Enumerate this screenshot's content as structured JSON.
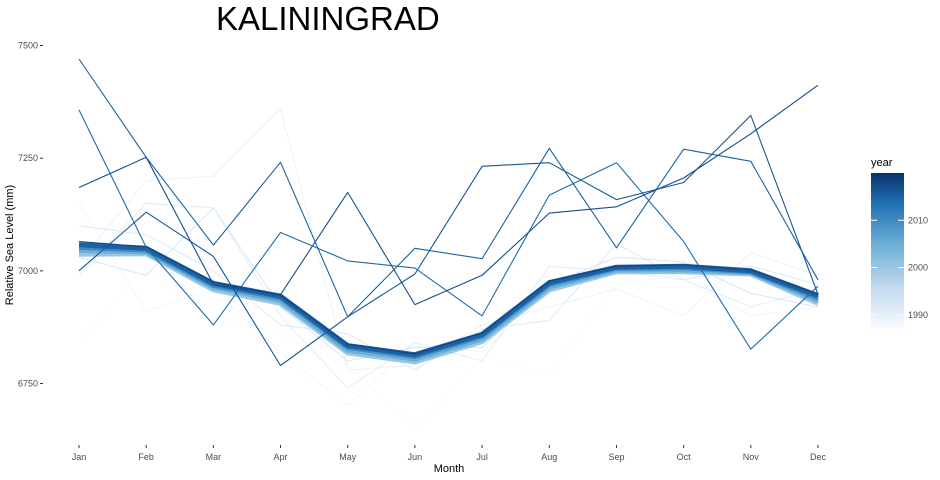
{
  "chart_data": {
    "type": "line",
    "title": "KALININGRAD",
    "xlabel": "Month",
    "ylabel": "Relative Sea Level (mm)",
    "categories": [
      "Jan",
      "Feb",
      "Mar",
      "Apr",
      "May",
      "Jun",
      "Jul",
      "Aug",
      "Sep",
      "Oct",
      "Nov",
      "Dec"
    ],
    "y_ticks": [
      6750,
      7000,
      7250,
      7500
    ],
    "ylim": [
      6625,
      7530
    ],
    "grid": false,
    "legend": {
      "title": "year",
      "placement": "right",
      "type": "colorbar",
      "ticks": [
        1990,
        2000,
        2010
      ],
      "range": [
        1987,
        2020
      ],
      "colors": [
        "#f7fbff",
        "#c6dbef",
        "#6baed6",
        "#2171b5",
        "#08306b"
      ]
    },
    "series": [
      {
        "year": 1987,
        "values": [
          6840,
          7010,
          6890,
          6860,
          6790,
          6650,
          6810,
          6770,
          6970,
          6990,
          6980,
          6940
        ]
      },
      {
        "year": 1988,
        "values": [
          7150,
          6910,
          6960,
          6820,
          6700,
          6840,
          6820,
          6950,
          7000,
          6980,
          6900,
          6920
        ]
      },
      {
        "year": 1989,
        "values": [
          7020,
          7200,
          7210,
          7360,
          6780,
          6790,
          6880,
          6920,
          6960,
          6900,
          7040,
          6990
        ]
      },
      {
        "year": 1990,
        "values": [
          6990,
          7150,
          7140,
          6900,
          6740,
          6840,
          6800,
          7010,
          7000,
          6980,
          6920,
          6960
        ]
      },
      {
        "year": 1991,
        "values": [
          7100,
          7080,
          7000,
          6880,
          6860,
          6780,
          6870,
          6890,
          7060,
          6980,
          7010,
          6970
        ]
      },
      {
        "year": 1992,
        "values": [
          7030,
          6990,
          7140,
          6920,
          6800,
          6830,
          6830,
          6970,
          7030,
          7020,
          6950,
          6920
        ]
      },
      {
        "year": 2000,
        "values": [
          7037,
          7038,
          6958,
          6928,
          6818,
          6798,
          6843,
          6958,
          6998,
          6998,
          6993,
          6928
        ]
      },
      {
        "year": 2005,
        "values": [
          7045,
          7042,
          6964,
          6934,
          6824,
          6804,
          6849,
          6964,
          7002,
          7002,
          6996,
          6934
        ]
      },
      {
        "year": 2010,
        "values": [
          7052,
          7046,
          6968,
          6940,
          6830,
          6810,
          6855,
          6970,
          7006,
          7007,
          6998,
          6940
        ]
      },
      {
        "year": 2015,
        "values": [
          7058,
          7050,
          6972,
          6944,
          6834,
          6814,
          6859,
          6974,
          7008,
          7010,
          7000,
          6945
        ]
      },
      {
        "year": 2014,
        "values": [
          7357,
          7052,
          6880,
          7085,
          7022,
          7006,
          6900,
          7168,
          7240,
          7065,
          6826,
          6966
        ]
      },
      {
        "year": 2015,
        "values": [
          7470,
          7252,
          7057,
          7241,
          6898,
          7050,
          7027,
          7272,
          7051,
          7270,
          7243,
          6980
        ]
      },
      {
        "year": 2016,
        "values": [
          7000,
          7130,
          7032,
          6790,
          6898,
          6993,
          7232,
          7240,
          7158,
          7196,
          7345,
          6948
        ]
      },
      {
        "year": 2017,
        "values": [
          7185,
          7252,
          6970,
          6947,
          7174,
          6925,
          6990,
          7128,
          7142,
          7206,
          7304,
          7412
        ]
      },
      {
        "year": 2018,
        "values": [
          7065,
          7053,
          6975,
          6946,
          6837,
          6816,
          6862,
          6977,
          7010,
          7013,
          7002,
          6948
        ]
      }
    ]
  }
}
